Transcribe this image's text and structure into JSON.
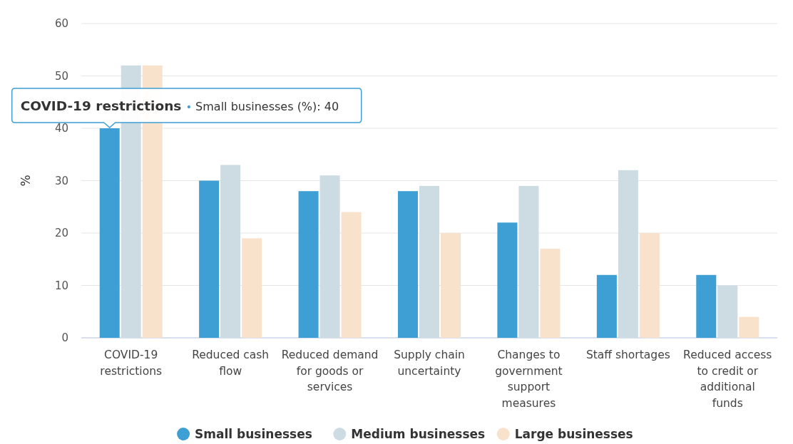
{
  "chart_data": {
    "type": "bar",
    "ylabel": "%",
    "categories": [
      "COVID-19 restrictions",
      "Reduced cash flow",
      "Reduced demand for goods or services",
      "Supply chain uncertainty",
      "Changes to government support measures",
      "Staff shortages",
      "Reduced access to credit or additional funds"
    ],
    "series": [
      {
        "name": "Small businesses",
        "color": "#3d9fd3",
        "values": [
          40,
          30,
          28,
          28,
          22,
          12,
          12
        ]
      },
      {
        "name": "Medium businesses",
        "color": "#cddbe3",
        "values": [
          52,
          33,
          31,
          29,
          29,
          32,
          10
        ]
      },
      {
        "name": "Large businesses",
        "color": "#f9e2cc",
        "values": [
          52,
          19,
          24,
          20,
          17,
          20,
          4
        ]
      }
    ],
    "ylim": [
      0,
      60
    ],
    "yticks": [
      0,
      10,
      20,
      30,
      40,
      50,
      60
    ],
    "grid": "y",
    "legend": "bottom",
    "annotations": [
      "COVID-19 restrictions • Small businesses (%): 40"
    ]
  }
}
